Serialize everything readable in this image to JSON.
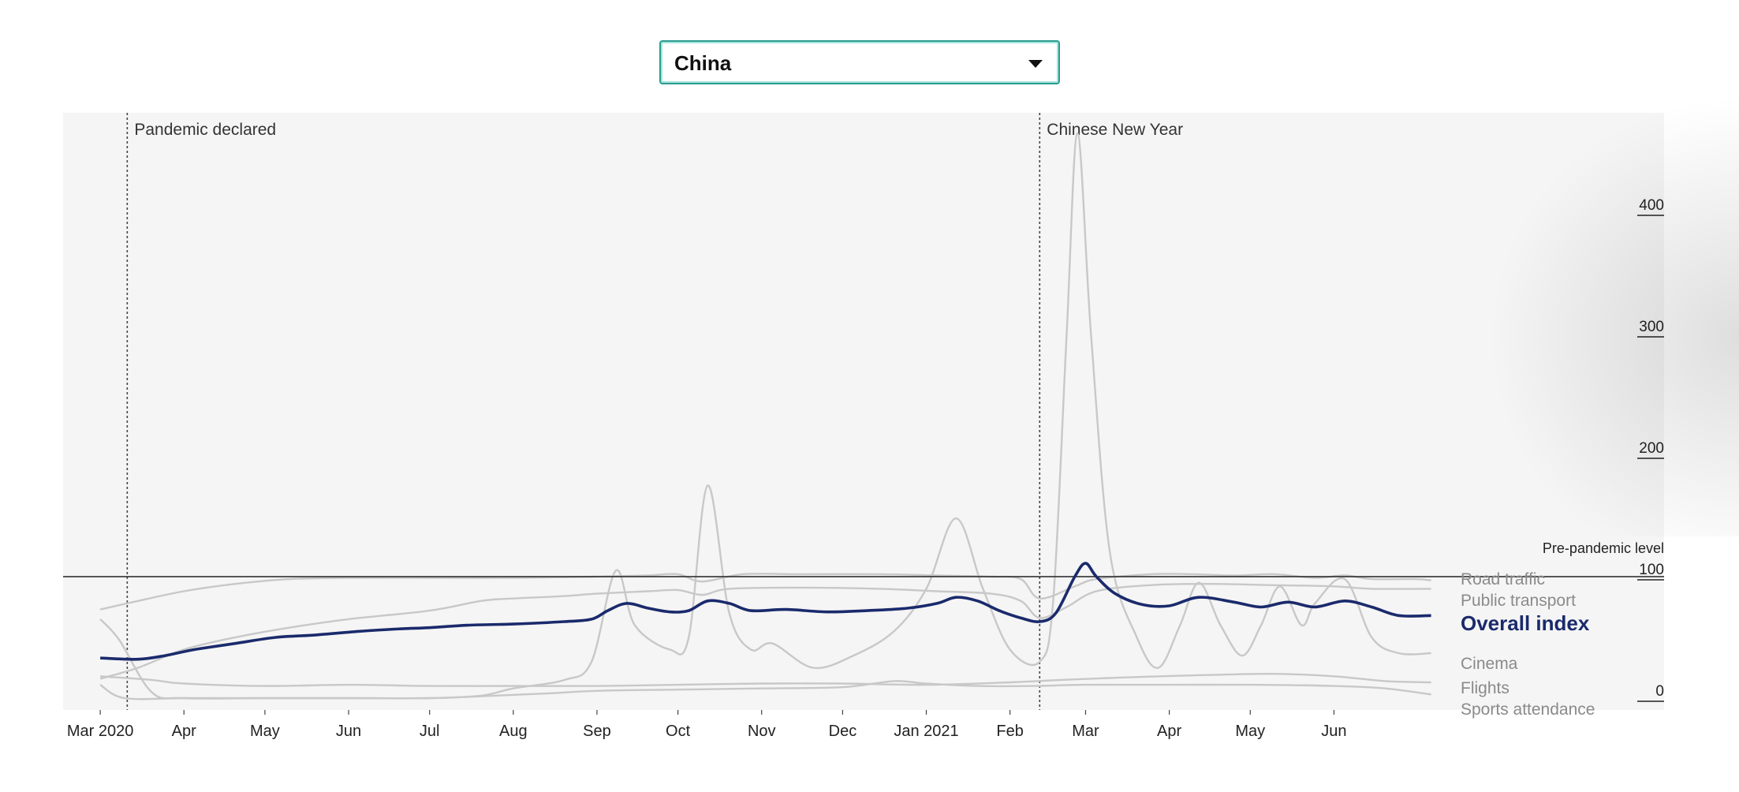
{
  "country_select": {
    "selected": "China",
    "icon": "triangle-down-icon"
  },
  "colors": {
    "plot_background": "#f5f5f5",
    "overall_index": "#1a2a6c",
    "other_series": "#c8c8c8",
    "select_border": "#2a9d8f"
  },
  "chart_data": {
    "type": "line",
    "y_range": [
      0,
      465
    ],
    "x_range": [
      "2020-02-25",
      "2021-07-15"
    ],
    "grid": false,
    "y_ticks": [
      {
        "value": 0,
        "label": "0"
      },
      {
        "value": 100,
        "label": "100"
      },
      {
        "value": 200,
        "label": "200"
      },
      {
        "value": 300,
        "label": "300"
      },
      {
        "value": 400,
        "label": "400"
      }
    ],
    "x_ticks": [
      {
        "date": "2020-03-01",
        "label": "Mar 2020"
      },
      {
        "date": "2020-04-01",
        "label": "Apr"
      },
      {
        "date": "2020-05-01",
        "label": "May"
      },
      {
        "date": "2020-06-01",
        "label": "Jun"
      },
      {
        "date": "2020-07-01",
        "label": "Jul"
      },
      {
        "date": "2020-08-01",
        "label": "Aug"
      },
      {
        "date": "2020-09-01",
        "label": "Sep"
      },
      {
        "date": "2020-10-01",
        "label": "Oct"
      },
      {
        "date": "2020-11-01",
        "label": "Nov"
      },
      {
        "date": "2020-12-01",
        "label": "Dec"
      },
      {
        "date": "2021-01-01",
        "label": "Jan 2021"
      },
      {
        "date": "2021-02-01",
        "label": "Feb"
      },
      {
        "date": "2021-03-01",
        "label": "Mar"
      },
      {
        "date": "2021-04-01",
        "label": "Apr"
      },
      {
        "date": "2021-05-01",
        "label": "May"
      },
      {
        "date": "2021-06-01",
        "label": "Jun"
      }
    ],
    "reference_line": {
      "value": 100,
      "label": "Pre-pandemic level"
    },
    "events": [
      {
        "date": "2020-03-11",
        "label": "Pandemic declared"
      },
      {
        "date": "2021-02-12",
        "label": "Chinese New Year"
      }
    ],
    "series": [
      {
        "name": "Road traffic",
        "highlight": false,
        "points": [
          [
            "2020-03-01",
            73
          ],
          [
            "2020-03-15",
            80
          ],
          [
            "2020-04-01",
            88
          ],
          [
            "2020-04-20",
            94
          ],
          [
            "2020-05-10",
            98
          ],
          [
            "2020-06-01",
            99
          ],
          [
            "2020-07-01",
            99
          ],
          [
            "2020-08-01",
            99
          ],
          [
            "2020-09-01",
            100
          ],
          [
            "2020-09-20",
            101
          ],
          [
            "2020-10-01",
            102
          ],
          [
            "2020-10-10",
            96
          ],
          [
            "2020-10-25",
            102
          ],
          [
            "2020-11-15",
            102
          ],
          [
            "2020-12-15",
            102
          ],
          [
            "2021-01-05",
            101
          ],
          [
            "2021-01-25",
            100
          ],
          [
            "2021-02-05",
            98
          ],
          [
            "2021-02-12",
            82
          ],
          [
            "2021-02-25",
            92
          ],
          [
            "2021-03-05",
            98
          ],
          [
            "2021-03-25",
            102
          ],
          [
            "2021-04-10",
            102
          ],
          [
            "2021-04-25",
            101
          ],
          [
            "2021-05-10",
            102
          ],
          [
            "2021-05-25",
            99
          ],
          [
            "2021-06-05",
            101
          ],
          [
            "2021-06-15",
            98
          ],
          [
            "2021-07-01",
            98
          ],
          [
            "2021-07-07",
            97
          ]
        ]
      },
      {
        "name": "Public transport",
        "highlight": false,
        "points": [
          [
            "2020-03-01",
            16
          ],
          [
            "2020-03-15",
            25
          ],
          [
            "2020-04-01",
            40
          ],
          [
            "2020-04-20",
            50
          ],
          [
            "2020-05-10",
            58
          ],
          [
            "2020-06-01",
            65
          ],
          [
            "2020-07-01",
            72
          ],
          [
            "2020-07-20",
            80
          ],
          [
            "2020-08-01",
            82
          ],
          [
            "2020-08-20",
            84
          ],
          [
            "2020-09-01",
            86
          ],
          [
            "2020-09-20",
            88
          ],
          [
            "2020-10-01",
            89
          ],
          [
            "2020-10-10",
            85
          ],
          [
            "2020-10-20",
            90
          ],
          [
            "2020-11-15",
            91
          ],
          [
            "2020-12-15",
            90
          ],
          [
            "2021-01-05",
            88
          ],
          [
            "2021-01-25",
            86
          ],
          [
            "2021-02-05",
            80
          ],
          [
            "2021-02-12",
            66
          ],
          [
            "2021-02-22",
            75
          ],
          [
            "2021-03-05",
            88
          ],
          [
            "2021-03-25",
            93
          ],
          [
            "2021-04-15",
            94
          ],
          [
            "2021-05-10",
            93
          ],
          [
            "2021-06-01",
            92
          ],
          [
            "2021-06-15",
            90
          ],
          [
            "2021-07-07",
            90
          ]
        ]
      },
      {
        "name": "Overall index",
        "highlight": true,
        "points": [
          [
            "2020-03-01",
            33
          ],
          [
            "2020-03-15",
            32
          ],
          [
            "2020-03-25",
            35
          ],
          [
            "2020-04-05",
            40
          ],
          [
            "2020-04-20",
            45
          ],
          [
            "2020-05-05",
            50
          ],
          [
            "2020-05-20",
            52
          ],
          [
            "2020-06-05",
            55
          ],
          [
            "2020-06-20",
            57
          ],
          [
            "2020-07-01",
            58
          ],
          [
            "2020-07-15",
            60
          ],
          [
            "2020-08-01",
            61
          ],
          [
            "2020-08-20",
            63
          ],
          [
            "2020-08-30",
            65
          ],
          [
            "2020-09-05",
            72
          ],
          [
            "2020-09-12",
            78
          ],
          [
            "2020-09-20",
            74
          ],
          [
            "2020-09-28",
            71
          ],
          [
            "2020-10-05",
            72
          ],
          [
            "2020-10-12",
            80
          ],
          [
            "2020-10-20",
            78
          ],
          [
            "2020-10-28",
            72
          ],
          [
            "2020-11-10",
            73
          ],
          [
            "2020-11-25",
            71
          ],
          [
            "2020-12-10",
            72
          ],
          [
            "2020-12-25",
            74
          ],
          [
            "2021-01-05",
            78
          ],
          [
            "2021-01-12",
            83
          ],
          [
            "2021-01-20",
            80
          ],
          [
            "2021-01-28",
            72
          ],
          [
            "2021-02-05",
            66
          ],
          [
            "2021-02-12",
            63
          ],
          [
            "2021-02-18",
            70
          ],
          [
            "2021-02-25",
            100
          ],
          [
            "2021-03-01",
            111
          ],
          [
            "2021-03-05",
            100
          ],
          [
            "2021-03-12",
            86
          ],
          [
            "2021-03-22",
            77
          ],
          [
            "2021-04-01",
            76
          ],
          [
            "2021-04-12",
            83
          ],
          [
            "2021-04-25",
            79
          ],
          [
            "2021-05-05",
            75
          ],
          [
            "2021-05-15",
            79
          ],
          [
            "2021-05-25",
            75
          ],
          [
            "2021-06-05",
            80
          ],
          [
            "2021-06-15",
            75
          ],
          [
            "2021-06-25",
            68
          ],
          [
            "2021-07-07",
            68
          ]
        ]
      },
      {
        "name": "Cinema",
        "highlight": false,
        "points": [
          [
            "2020-03-01",
            65
          ],
          [
            "2020-03-08",
            48
          ],
          [
            "2020-03-20",
            5
          ],
          [
            "2020-04-01",
            0
          ],
          [
            "2020-05-01",
            0
          ],
          [
            "2020-06-01",
            0
          ],
          [
            "2020-07-01",
            0
          ],
          [
            "2020-07-20",
            2
          ],
          [
            "2020-08-01",
            8
          ],
          [
            "2020-08-20",
            15
          ],
          [
            "2020-08-30",
            30
          ],
          [
            "2020-09-08",
            105
          ],
          [
            "2020-09-15",
            60
          ],
          [
            "2020-09-28",
            40
          ],
          [
            "2020-10-05",
            50
          ],
          [
            "2020-10-12",
            175
          ],
          [
            "2020-10-20",
            70
          ],
          [
            "2020-10-28",
            40
          ],
          [
            "2020-11-05",
            45
          ],
          [
            "2020-11-20",
            25
          ],
          [
            "2020-12-05",
            35
          ],
          [
            "2020-12-20",
            55
          ],
          [
            "2021-01-01",
            90
          ],
          [
            "2021-01-12",
            148
          ],
          [
            "2021-01-22",
            90
          ],
          [
            "2021-02-01",
            40
          ],
          [
            "2021-02-12",
            30
          ],
          [
            "2021-02-17",
            80
          ],
          [
            "2021-02-22",
            300
          ],
          [
            "2021-02-26",
            465
          ],
          [
            "2021-03-03",
            300
          ],
          [
            "2021-03-10",
            120
          ],
          [
            "2021-03-20",
            50
          ],
          [
            "2021-03-28",
            25
          ],
          [
            "2021-04-05",
            60
          ],
          [
            "2021-04-12",
            95
          ],
          [
            "2021-04-20",
            60
          ],
          [
            "2021-04-28",
            35
          ],
          [
            "2021-05-05",
            60
          ],
          [
            "2021-05-12",
            92
          ],
          [
            "2021-05-20",
            60
          ],
          [
            "2021-05-25",
            78
          ],
          [
            "2021-06-05",
            98
          ],
          [
            "2021-06-15",
            50
          ],
          [
            "2021-06-25",
            37
          ],
          [
            "2021-07-07",
            37
          ]
        ]
      },
      {
        "name": "Flights",
        "highlight": false,
        "points": [
          [
            "2020-03-01",
            18
          ],
          [
            "2020-03-20",
            15
          ],
          [
            "2020-04-01",
            12
          ],
          [
            "2020-05-01",
            10
          ],
          [
            "2020-06-01",
            11
          ],
          [
            "2020-07-01",
            10
          ],
          [
            "2020-08-01",
            10
          ],
          [
            "2020-09-01",
            10
          ],
          [
            "2020-10-01",
            11
          ],
          [
            "2020-11-01",
            12
          ],
          [
            "2020-12-01",
            12
          ],
          [
            "2021-01-01",
            11
          ],
          [
            "2021-02-01",
            13
          ],
          [
            "2021-02-20",
            15
          ],
          [
            "2021-03-15",
            17
          ],
          [
            "2021-04-15",
            19
          ],
          [
            "2021-05-10",
            20
          ],
          [
            "2021-06-01",
            18
          ],
          [
            "2021-06-20",
            14
          ],
          [
            "2021-07-07",
            13
          ]
        ]
      },
      {
        "name": "Sports attendance",
        "highlight": false,
        "points": [
          [
            "2020-03-01",
            11
          ],
          [
            "2020-03-10",
            0
          ],
          [
            "2020-04-01",
            0
          ],
          [
            "2020-05-01",
            0
          ],
          [
            "2020-06-01",
            0
          ],
          [
            "2020-07-01",
            0
          ],
          [
            "2020-07-25",
            2
          ],
          [
            "2020-08-15",
            4
          ],
          [
            "2020-09-01",
            6
          ],
          [
            "2020-10-01",
            7
          ],
          [
            "2020-11-01",
            8
          ],
          [
            "2020-12-01",
            9
          ],
          [
            "2020-12-20",
            14
          ],
          [
            "2021-01-01",
            12
          ],
          [
            "2021-01-20",
            10
          ],
          [
            "2021-02-10",
            10
          ],
          [
            "2021-03-01",
            11
          ],
          [
            "2021-04-01",
            11
          ],
          [
            "2021-05-01",
            11
          ],
          [
            "2021-06-01",
            10
          ],
          [
            "2021-06-20",
            8
          ],
          [
            "2021-07-07",
            3
          ]
        ]
      }
    ]
  }
}
